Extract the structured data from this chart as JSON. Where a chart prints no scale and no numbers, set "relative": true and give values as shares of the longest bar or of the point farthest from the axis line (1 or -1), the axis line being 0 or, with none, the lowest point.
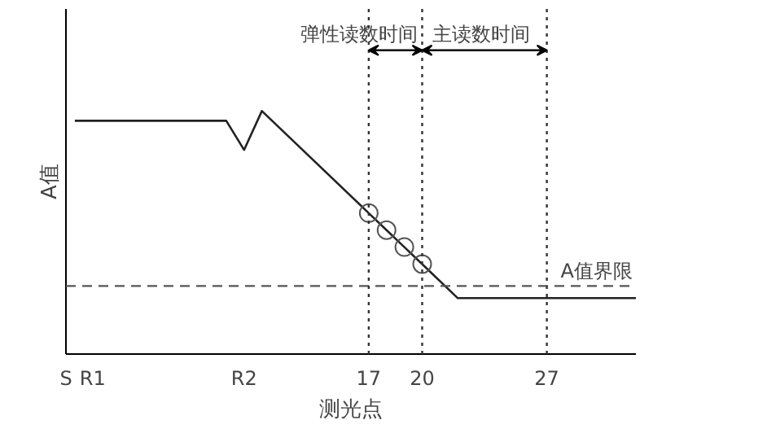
{
  "chart_data": {
    "type": "line",
    "relative": true,
    "xlabel": "测光点",
    "ylabel": "A值",
    "xlim": [
      0,
      32
    ],
    "xticks": [
      {
        "value": 0,
        "label": "S"
      },
      {
        "value": 1.5,
        "label": "R1"
      },
      {
        "value": 10,
        "label": "R2"
      },
      17,
      20,
      27
    ],
    "series": [
      {
        "color": "#222222",
        "x": [
          0.5,
          9,
          10,
          11,
          17,
          18,
          19,
          20,
          22,
          32
        ],
        "values": [
          0.96,
          0.96,
          0.84,
          1,
          0.58,
          0.51,
          0.44,
          0.37,
          0.23,
          0.23
        ],
        "marker": "none"
      },
      {
        "type": "scatter",
        "color": "#555555",
        "x": [
          17,
          18,
          19,
          20
        ],
        "values": [
          0.58,
          0.51,
          0.44,
          0.37
        ],
        "marker": "circle"
      }
    ],
    "ref_lines": [
      {
        "axis": "y",
        "value": 0.28,
        "label": "A值界限",
        "line_style": "dashed",
        "color": "#555555"
      },
      {
        "axis": "x",
        "value": 17,
        "label": null,
        "line_style": "dotted",
        "color": "#333333"
      },
      {
        "axis": "x",
        "value": 20,
        "label": null,
        "line_style": "dotted",
        "color": "#333333"
      },
      {
        "axis": "x",
        "value": 27,
        "label": null,
        "line_style": "dotted",
        "color": "#333333"
      }
    ],
    "annotations": [
      "弹性读数时间",
      "主读数时间"
    ],
    "grid": false
  }
}
